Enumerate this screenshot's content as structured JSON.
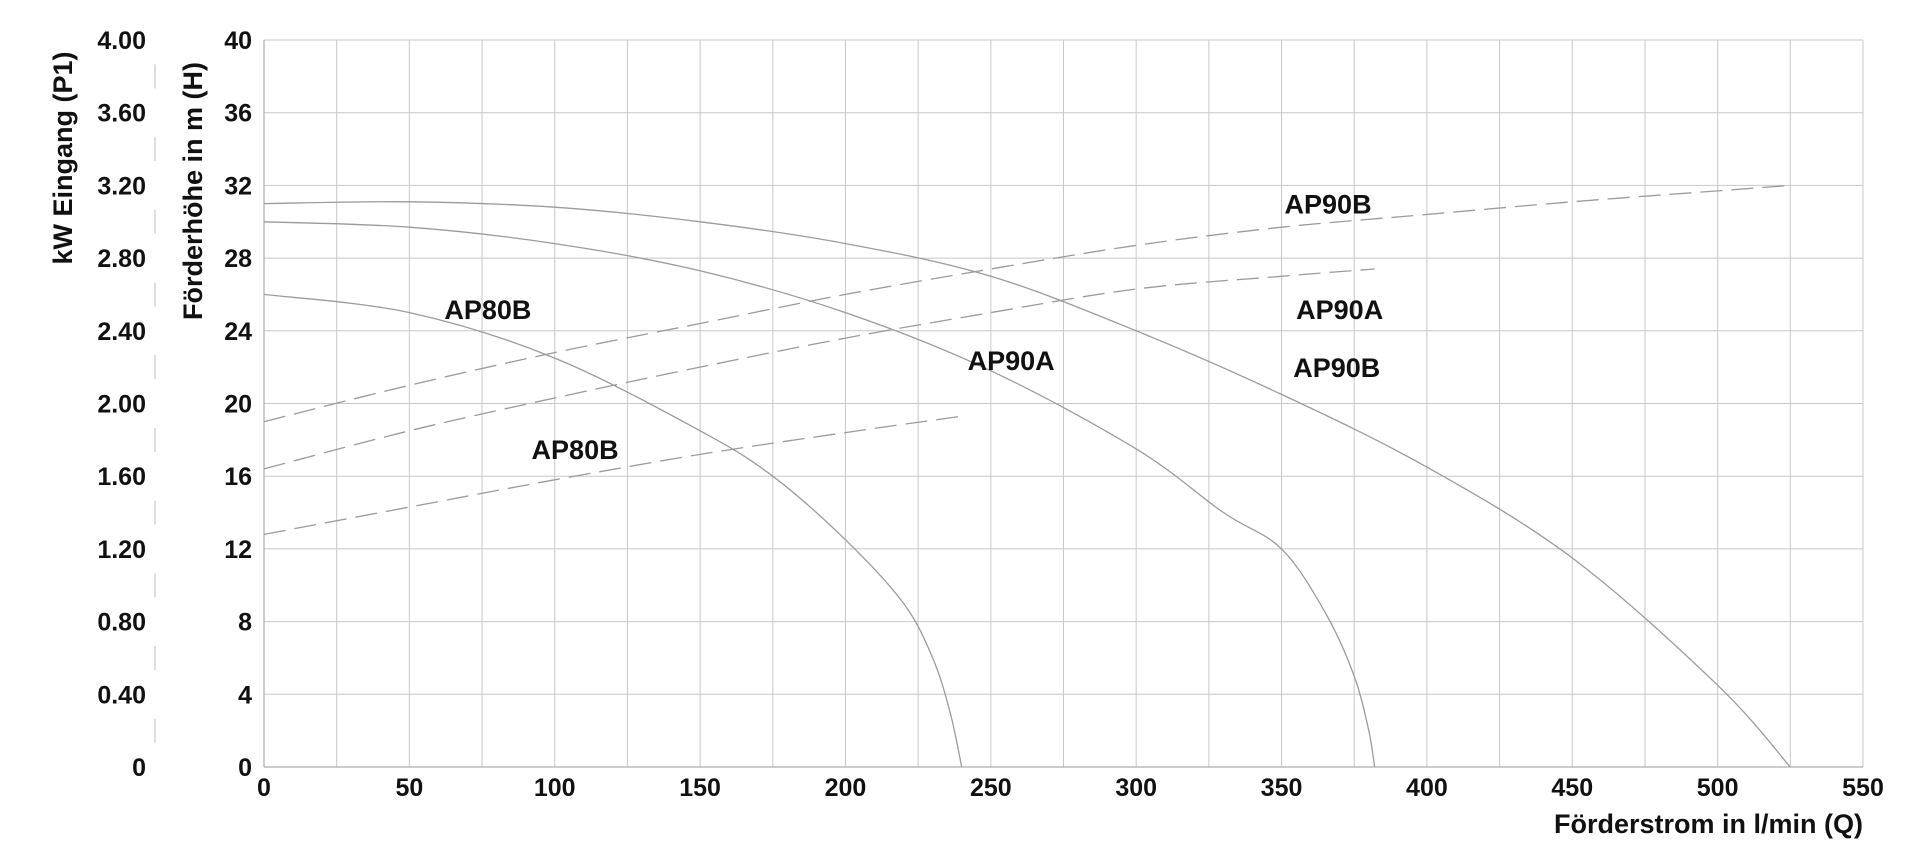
{
  "chart_data": {
    "type": "line",
    "x_axis": {
      "label": "Förderstrom in l/min (Q)",
      "min": 0,
      "max": 550,
      "ticks": [
        "0",
        "50",
        "100",
        "150",
        "200",
        "250",
        "300",
        "350",
        "400",
        "450",
        "500",
        "550"
      ],
      "minor_step": 25
    },
    "y_axis_left": {
      "label": "Förderhöhe in m (H)",
      "min": 0,
      "max": 40,
      "ticks": [
        "0",
        "4",
        "8",
        "12",
        "16",
        "20",
        "24",
        "28",
        "32",
        "36",
        "40"
      ]
    },
    "y_axis_power": {
      "label": "kW Eingang (P1)",
      "min": 0,
      "max": 4,
      "ticks": [
        "0",
        "0.40",
        "0.80",
        "1.20",
        "1.60",
        "2.00",
        "2.40",
        "2.80",
        "3.20",
        "3.60",
        "4.00"
      ]
    },
    "grid": true,
    "series": [
      {
        "name": "AP80B",
        "kind": "head",
        "style": "solid",
        "points": [
          [
            0,
            26
          ],
          [
            50,
            25
          ],
          [
            100,
            22.5
          ],
          [
            150,
            18.5
          ],
          [
            175,
            16
          ],
          [
            200,
            12.5
          ],
          [
            220,
            9
          ],
          [
            230,
            6
          ],
          [
            236,
            3
          ],
          [
            240,
            0
          ]
        ]
      },
      {
        "name": "AP90A",
        "kind": "head",
        "style": "solid",
        "points": [
          [
            0,
            30
          ],
          [
            50,
            29.7
          ],
          [
            100,
            28.8
          ],
          [
            150,
            27.3
          ],
          [
            200,
            25
          ],
          [
            250,
            21.8
          ],
          [
            300,
            17.5
          ],
          [
            330,
            14
          ],
          [
            350,
            12
          ],
          [
            365,
            8.5
          ],
          [
            375,
            5
          ],
          [
            380,
            2
          ],
          [
            382,
            0
          ]
        ]
      },
      {
        "name": "AP90B",
        "kind": "head",
        "style": "solid",
        "points": [
          [
            0,
            31
          ],
          [
            50,
            31.1
          ],
          [
            100,
            30.8
          ],
          [
            150,
            30
          ],
          [
            200,
            28.8
          ],
          [
            250,
            27
          ],
          [
            300,
            24
          ],
          [
            350,
            20.5
          ],
          [
            400,
            16.5
          ],
          [
            450,
            11.5
          ],
          [
            500,
            4.5
          ],
          [
            525,
            0
          ]
        ]
      },
      {
        "name": "AP80B",
        "kind": "power",
        "style": "dashed",
        "points": [
          [
            0,
            1.28
          ],
          [
            50,
            1.43
          ],
          [
            100,
            1.58
          ],
          [
            150,
            1.72
          ],
          [
            200,
            1.84
          ],
          [
            240,
            1.93
          ]
        ]
      },
      {
        "name": "AP90A",
        "kind": "power",
        "style": "dashed",
        "points": [
          [
            0,
            1.64
          ],
          [
            50,
            1.85
          ],
          [
            100,
            2.03
          ],
          [
            150,
            2.2
          ],
          [
            200,
            2.36
          ],
          [
            250,
            2.5
          ],
          [
            300,
            2.63
          ],
          [
            350,
            2.7
          ],
          [
            382,
            2.74
          ]
        ]
      },
      {
        "name": "AP90B",
        "kind": "power",
        "style": "dashed",
        "points": [
          [
            0,
            1.9
          ],
          [
            50,
            2.1
          ],
          [
            100,
            2.28
          ],
          [
            150,
            2.44
          ],
          [
            200,
            2.6
          ],
          [
            250,
            2.74
          ],
          [
            300,
            2.87
          ],
          [
            350,
            2.97
          ],
          [
            400,
            3.04
          ],
          [
            450,
            3.11
          ],
          [
            500,
            3.17
          ],
          [
            525,
            3.2
          ]
        ]
      }
    ],
    "annotations": [
      {
        "text": "AP80B",
        "x": 77,
        "y": 25.2
      },
      {
        "text": "AP80B",
        "x": 107,
        "y": 17.5
      },
      {
        "text": "AP90A",
        "x": 257,
        "y": 22.4
      },
      {
        "text": "AP90A",
        "x": 370,
        "y": 25.2
      },
      {
        "text": "AP90B",
        "x": 366,
        "y": 31
      },
      {
        "text": "AP90B",
        "x": 369,
        "y": 22
      }
    ]
  }
}
